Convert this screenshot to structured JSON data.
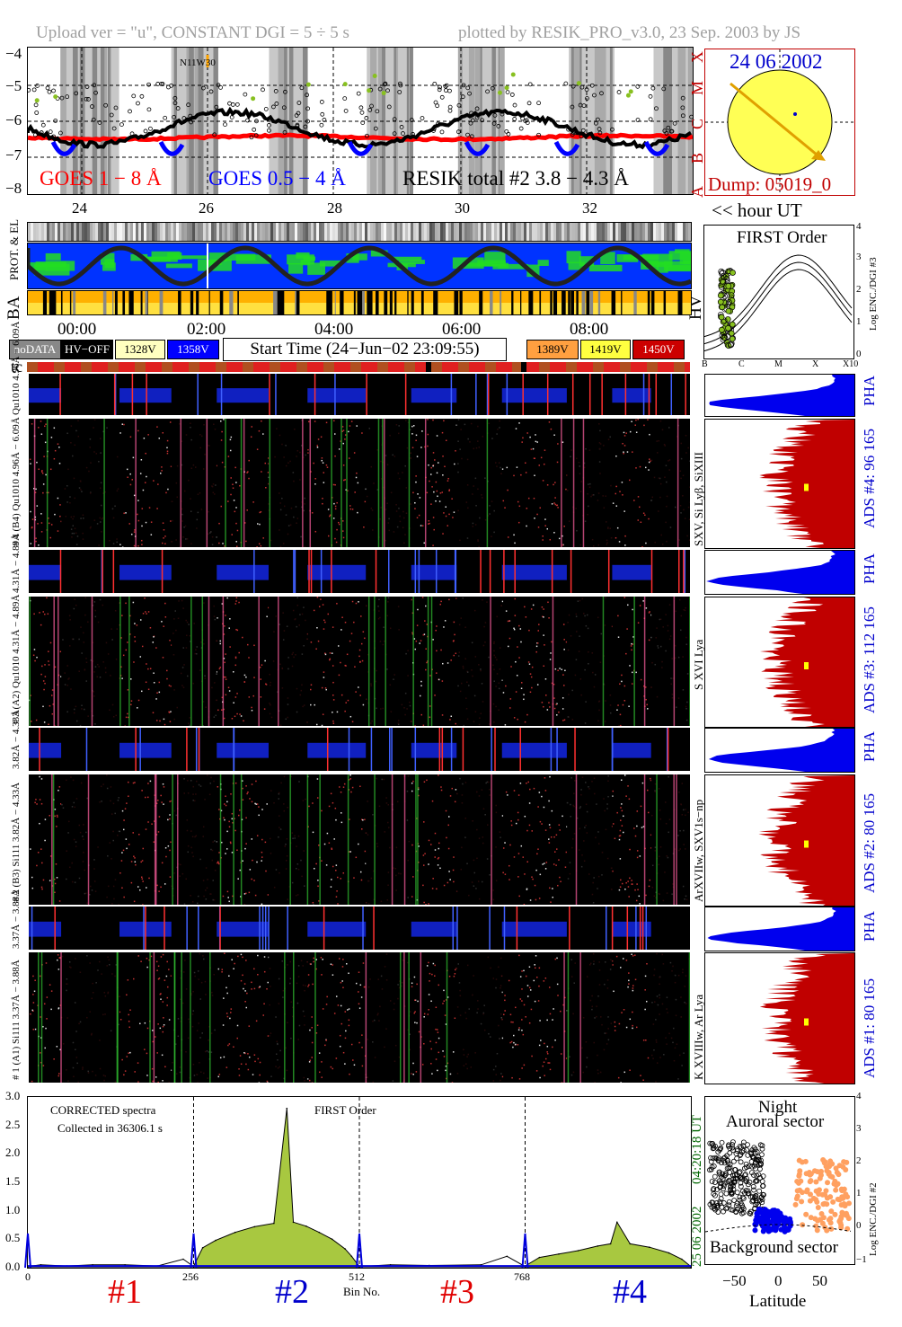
{
  "header": {
    "upload": "Upload ver = \"u\", CONSTANT  DGI =   5 ÷   5 s",
    "plotted": "plotted by RESIK_PRO_v3.0, 23 Sep. 2003 by JS"
  },
  "goes": {
    "yticks": [
      "−4",
      "−5",
      "−6",
      "−7",
      "−8"
    ],
    "xticks": [
      "24",
      "26",
      "28",
      "30",
      "32"
    ],
    "flare_label": "N11W30",
    "label_goes18": "GOES 1 − 8 Å",
    "label_goes054": "GOES 0.5 − 4 Å",
    "label_resik": "RESIK total #2  3.8 − 4.3 Å",
    "classes": [
      "X",
      "M",
      "C",
      "B",
      "A"
    ],
    "hour_ut": "<< hour UT",
    "colors": {
      "goes18": "#ff0000",
      "goes054": "#0000ff",
      "resik": "#000000",
      "flare": "#ffa500"
    }
  },
  "sun": {
    "date": "24 06 2002",
    "dump": "Dump: 05019_0",
    "colors": {
      "disk": "#ffff55",
      "track": "#e0a000",
      "frame": "#c00000"
    }
  },
  "status": {
    "label_prot": "PROT. & EL",
    "label_ba": "BA",
    "label_hv": "HV",
    "time_ticks": [
      "00:00",
      "02:00",
      "04:00",
      "06:00",
      "08:00"
    ]
  },
  "legend": {
    "nodata": "noDATA",
    "hvoff": "HV−OFF",
    "v1328": "1328V",
    "v1358": "1358V",
    "start_time": "Start Time (24−Jun−02 23:09:55)",
    "v1389": "1389V",
    "v1419": "1419V",
    "v1450": "1450V",
    "colors": {
      "nodata": "#888888",
      "hvoff": "#000000",
      "v1328": "#ffffc0",
      "v1358": "#0000ff",
      "v1389": "#ffa040",
      "v1419": "#ffff40",
      "v1450": "#cc0000"
    }
  },
  "first_order": {
    "title": "FIRST Order",
    "ylabel": "Log ENC./DGI #3",
    "yticks": [
      "4",
      "3",
      "2",
      "1",
      "0"
    ],
    "xticks": [
      "B",
      "C",
      "M",
      "X",
      "X10"
    ]
  },
  "tc_label": "tc",
  "channels": [
    {
      "id": "4",
      "pha_label": "Qu1010 4.96Å − 6.09Å",
      "main_label": "# 4 (B4) Qu1010 4.96Å − 6.09Å",
      "lines": "SXV, Si Lyβ, SiXIII",
      "ads": "ADS #4:   96 165"
    },
    {
      "id": "3",
      "pha_label": "4.31Å − 4.89Å",
      "main_label": "# 3 (A2) Qu1010 4.31Å − 4.89Å",
      "lines": "S XVI Lya",
      "ads": "ADS #3:  112 165"
    },
    {
      "id": "2",
      "pha_label": "3.82Å − 4.33Å",
      "main_label": "# 2 (B3) Si111 3.82Å − 4.33Å",
      "lines": "ArXVIIw, SXV1s−np",
      "ads": "ADS #2:   80 165"
    },
    {
      "id": "1",
      "pha_label": "3.37Å − 3.88Å",
      "main_label": "# 1 (A1) Si111 3.37Å − 3.88Å",
      "lines": "K XVIIIw, Ar Lya",
      "ads": "ADS #1:   80 165"
    }
  ],
  "pha_label": "PHA",
  "spectrum": {
    "title_left": "CORRECTED spectra",
    "collected": "Collected in 36306.1 s",
    "first_order": "FIRST Order",
    "date": "25 06 2002",
    "time": "04:20:18 UT",
    "xlabel": "Bin No.",
    "bin_ticks": [
      "0",
      "256",
      "512",
      "768"
    ],
    "channel_labels": [
      "#1",
      "#2",
      "#3",
      "#4"
    ],
    "channel_colors": [
      "#e00000",
      "#0000cc",
      "#e00000",
      "#0000cc"
    ]
  },
  "chart_data": {
    "type": "area",
    "title": "CORRECTED spectra",
    "xlabel": "Bin No.",
    "ylabel": "",
    "xlim": [
      0,
      1024
    ],
    "ylim": [
      0,
      3.0
    ],
    "yticks": [
      "0.0",
      "0.5",
      "1.0",
      "1.5",
      "2.0",
      "2.5",
      "3.0"
    ],
    "xticks": [
      0,
      256,
      512,
      768
    ],
    "series": [
      {
        "x": [
          0,
          20,
          60,
          100,
          150,
          200,
          240,
          256
        ],
        "y": [
          0.02,
          0.05,
          0.03,
          0.05,
          0.05,
          0.03,
          0.15,
          0.02
        ]
      },
      {
        "x": [
          256,
          270,
          290,
          320,
          350,
          380,
          400,
          410,
          430,
          450,
          470,
          490,
          500,
          512
        ],
        "y": [
          0.03,
          0.35,
          0.48,
          0.62,
          0.72,
          0.78,
          2.8,
          0.8,
          0.73,
          0.62,
          0.5,
          0.33,
          0.2,
          0.02
        ]
      },
      {
        "x": [
          512,
          560,
          620,
          700,
          740,
          768
        ],
        "y": [
          0.02,
          0.05,
          0.04,
          0.05,
          0.2,
          0.02
        ]
      },
      {
        "x": [
          768,
          790,
          820,
          850,
          880,
          900,
          910,
          930,
          960,
          990,
          1010,
          1024
        ],
        "y": [
          0.03,
          0.18,
          0.24,
          0.3,
          0.38,
          0.42,
          0.8,
          0.42,
          0.36,
          0.26,
          0.15,
          0.02
        ]
      }
    ]
  },
  "latitude": {
    "night": "Night",
    "auroral": "Auroral sector",
    "background": "Background sector",
    "xlabel": "Latitude",
    "xticks": [
      "−50",
      "0",
      "50"
    ],
    "ylabel": "Log ENC./DGI #2",
    "yticks": [
      "4",
      "3",
      "2",
      "1",
      "0",
      "−1"
    ]
  }
}
